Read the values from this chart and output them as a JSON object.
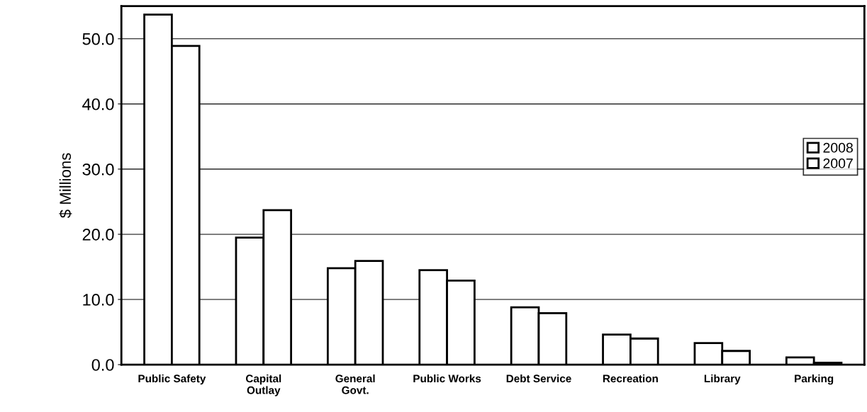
{
  "chart_data": {
    "type": "bar",
    "ylabel": "$ Millions",
    "categories": [
      "Public Safety",
      "Capital\nOutlay",
      "General\nGovt.",
      "Public Works",
      "Debt Service",
      "Recreation",
      "Library",
      "Parking"
    ],
    "series": [
      {
        "name": "2008",
        "color": "#ffffff",
        "values": [
          53.7,
          19.5,
          14.8,
          14.5,
          8.8,
          4.6,
          3.3,
          1.1
        ]
      },
      {
        "name": "2007",
        "color": "#ffffff",
        "values": [
          48.9,
          23.7,
          15.9,
          12.9,
          7.9,
          4.0,
          2.1,
          0.3
        ]
      }
    ],
    "ylim": [
      0,
      55
    ],
    "yticks": [
      {
        "value": 0,
        "label": "0.0"
      },
      {
        "value": 10,
        "label": "10.0"
      },
      {
        "value": 20,
        "label": "20.0"
      },
      {
        "value": 30,
        "label": "30.0"
      },
      {
        "value": 40,
        "label": "40.0"
      },
      {
        "value": 50,
        "label": "50.0"
      }
    ],
    "grid": "y",
    "legend": "right"
  }
}
